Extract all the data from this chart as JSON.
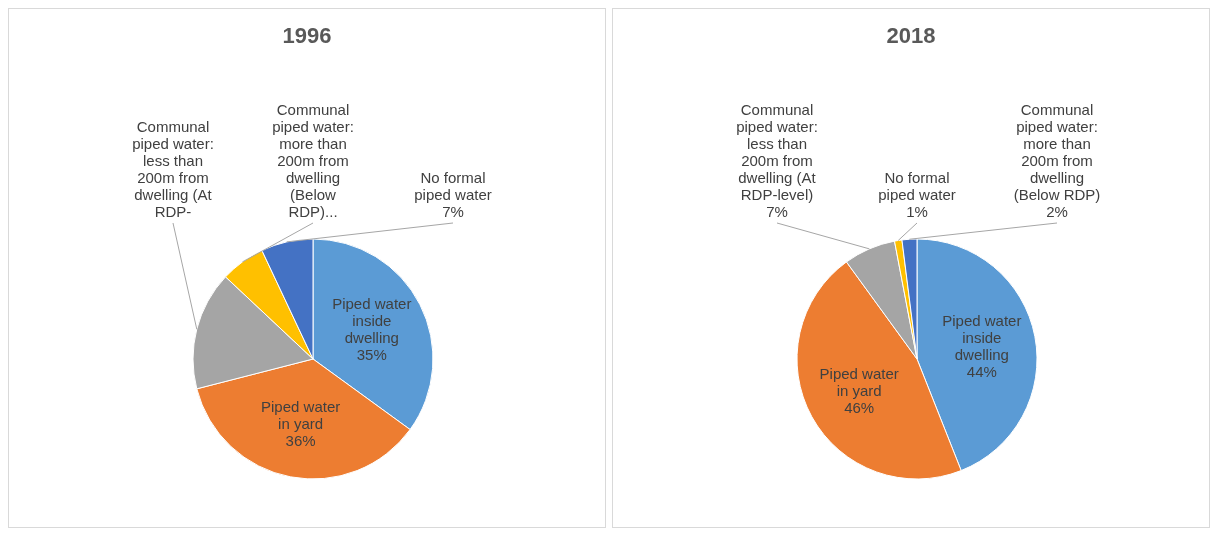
{
  "chart_data": [
    {
      "type": "pie",
      "title": "1996",
      "categories": [
        "Piped water inside dwelling",
        "Piped water in yard",
        "Communal piped water: less than 200m from dwelling (At RDP-",
        "Communal piped water: more than 200m from dwelling (Below RDP)...",
        "No formal piped water"
      ],
      "values": [
        35,
        36,
        16,
        6,
        7
      ],
      "colors": [
        "#5b9bd5",
        "#ed7d31",
        "#a5a5a5",
        "#ffc000",
        "#4472c4"
      ],
      "value_labels": [
        "35%",
        "36%",
        null,
        null,
        "7%"
      ]
    },
    {
      "type": "pie",
      "title": "2018",
      "categories": [
        "Piped water inside dwelling",
        "Piped water in yard",
        "Communal piped water: less than 200m from dwelling (At RDP-level)",
        "No formal piped water",
        "Communal piped water: more than 200m from dwelling (Below RDP)"
      ],
      "values": [
        44,
        46,
        7,
        1,
        2
      ],
      "colors": [
        "#5b9bd5",
        "#ed7d31",
        "#a5a5a5",
        "#ffc000",
        "#4472c4"
      ],
      "value_labels": [
        "44%",
        "46%",
        "7%",
        "1%",
        "2%"
      ]
    }
  ]
}
